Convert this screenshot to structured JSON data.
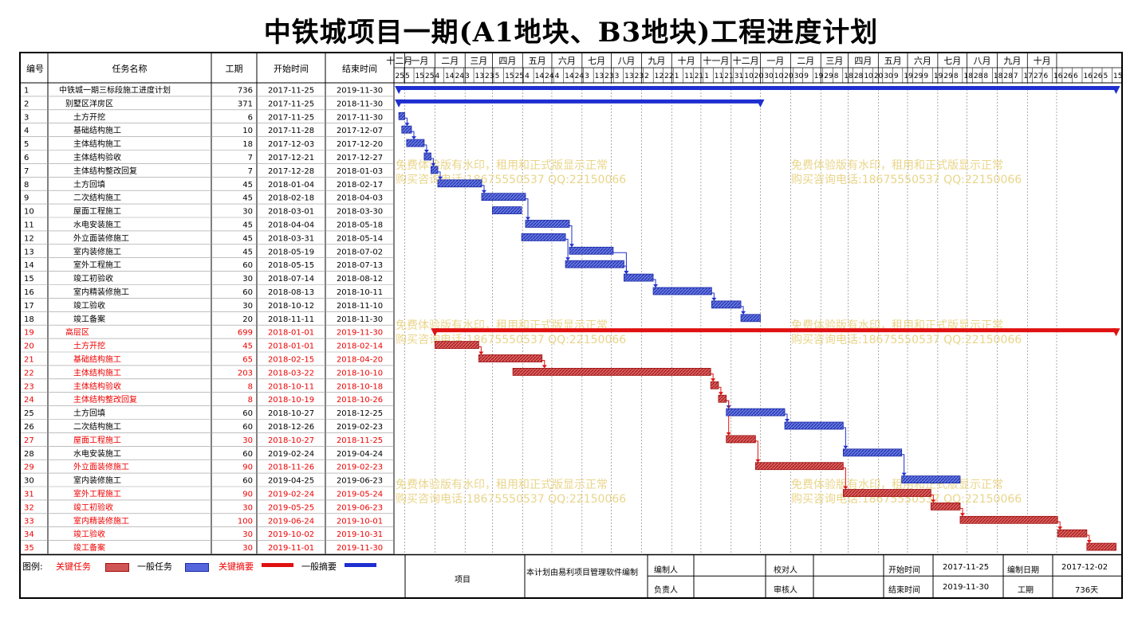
{
  "title": "中铁城项目一期(A1地块、B3地块)工程进度计划",
  "columns": {
    "id": "编号",
    "name": "任务名称",
    "duration": "工期",
    "start": "开始时间",
    "end": "结束时间"
  },
  "timeline": {
    "months": [
      "十二月",
      "一月",
      "二月",
      "三月",
      "四月",
      "五月",
      "六月",
      "七月",
      "八月",
      "九月",
      "十月",
      "十一月",
      "十二月",
      "一月",
      "二月",
      "三月",
      "四月",
      "五月",
      "六月",
      "七月",
      "八月",
      "九月",
      "十月"
    ],
    "days": [
      "25",
      "5",
      "15",
      "25",
      "4",
      "14",
      "24",
      "3",
      "13",
      "23",
      "5",
      "15",
      "25",
      "4",
      "14",
      "24",
      "4",
      "14",
      "24",
      "3",
      "13",
      "23",
      "3",
      "13",
      "23",
      "2",
      "12",
      "22",
      "1",
      "11",
      "21",
      "1",
      "11",
      "21",
      "31",
      "10",
      "20",
      "30",
      "10",
      "20",
      "30",
      "9",
      "19",
      "29",
      "8",
      "18",
      "28",
      "10",
      "20",
      "30",
      "9",
      "19",
      "29",
      "9",
      "19",
      "29",
      "8",
      "18",
      "28",
      "8",
      "18",
      "28",
      "7",
      "17",
      "27",
      "6",
      "16",
      "26",
      "6",
      "16",
      "26",
      "5",
      "15"
    ]
  },
  "tasks": [
    {
      "id": "1",
      "name": "中铁城一期三标段施工进度计划",
      "duration": "736",
      "start": "2017-11-25",
      "end": "2019-11-30",
      "type": "summary",
      "critical": false,
      "indent": 0
    },
    {
      "id": "2",
      "name": "别墅区洋房区",
      "duration": "371",
      "start": "2017-11-25",
      "end": "2018-11-30",
      "type": "summary",
      "critical": false,
      "indent": 1
    },
    {
      "id": "3",
      "name": "土方开挖",
      "duration": "6",
      "start": "2017-11-25",
      "end": "2017-11-30",
      "type": "task",
      "critical": false,
      "indent": 2
    },
    {
      "id": "4",
      "name": "基础结构施工",
      "duration": "10",
      "start": "2017-11-28",
      "end": "2017-12-07",
      "type": "task",
      "critical": false,
      "indent": 2
    },
    {
      "id": "5",
      "name": "主体结构施工",
      "duration": "18",
      "start": "2017-12-03",
      "end": "2017-12-20",
      "type": "task",
      "critical": false,
      "indent": 2
    },
    {
      "id": "6",
      "name": "主体结构验收",
      "duration": "7",
      "start": "2017-12-21",
      "end": "2017-12-27",
      "type": "task",
      "critical": false,
      "indent": 2
    },
    {
      "id": "7",
      "name": "主体结构整改回复",
      "duration": "7",
      "start": "2017-12-28",
      "end": "2018-01-03",
      "type": "task",
      "critical": false,
      "indent": 2
    },
    {
      "id": "8",
      "name": "土方回填",
      "duration": "45",
      "start": "2018-01-04",
      "end": "2018-02-17",
      "type": "task",
      "critical": false,
      "indent": 2
    },
    {
      "id": "9",
      "name": "二次结构施工",
      "duration": "45",
      "start": "2018-02-18",
      "end": "2018-04-03",
      "type": "task",
      "critical": false,
      "indent": 2
    },
    {
      "id": "10",
      "name": "屋面工程施工",
      "duration": "30",
      "start": "2018-03-01",
      "end": "2018-03-30",
      "type": "task",
      "critical": false,
      "indent": 2
    },
    {
      "id": "11",
      "name": "水电安装施工",
      "duration": "45",
      "start": "2018-04-04",
      "end": "2018-05-18",
      "type": "task",
      "critical": false,
      "indent": 2
    },
    {
      "id": "12",
      "name": "外立面装修施工",
      "duration": "45",
      "start": "2018-03-31",
      "end": "2018-05-14",
      "type": "task",
      "critical": false,
      "indent": 2
    },
    {
      "id": "13",
      "name": "室内装修施工",
      "duration": "45",
      "start": "2018-05-19",
      "end": "2018-07-02",
      "type": "task",
      "critical": false,
      "indent": 2
    },
    {
      "id": "14",
      "name": "室外工程施工",
      "duration": "60",
      "start": "2018-05-15",
      "end": "2018-07-13",
      "type": "task",
      "critical": false,
      "indent": 2
    },
    {
      "id": "15",
      "name": "竣工初验收",
      "duration": "30",
      "start": "2018-07-14",
      "end": "2018-08-12",
      "type": "task",
      "critical": false,
      "indent": 2
    },
    {
      "id": "16",
      "name": "室内精装修施工",
      "duration": "60",
      "start": "2018-08-13",
      "end": "2018-10-11",
      "type": "task",
      "critical": false,
      "indent": 2
    },
    {
      "id": "17",
      "name": "竣工验收",
      "duration": "30",
      "start": "2018-10-12",
      "end": "2018-11-10",
      "type": "task",
      "critical": false,
      "indent": 2
    },
    {
      "id": "18",
      "name": "竣工备案",
      "duration": "20",
      "start": "2018-11-11",
      "end": "2018-11-30",
      "type": "task",
      "critical": false,
      "indent": 2
    },
    {
      "id": "19",
      "name": "高层区",
      "duration": "699",
      "start": "2018-01-01",
      "end": "2019-11-30",
      "type": "summary",
      "critical": true,
      "indent": 1
    },
    {
      "id": "20",
      "name": "土方开挖",
      "duration": "45",
      "start": "2018-01-01",
      "end": "2018-02-14",
      "type": "task",
      "critical": true,
      "indent": 2
    },
    {
      "id": "21",
      "name": "基础结构施工",
      "duration": "65",
      "start": "2018-02-15",
      "end": "2018-04-20",
      "type": "task",
      "critical": true,
      "indent": 2
    },
    {
      "id": "22",
      "name": "主体结构施工",
      "duration": "203",
      "start": "2018-03-22",
      "end": "2018-10-10",
      "type": "task",
      "critical": true,
      "indent": 2
    },
    {
      "id": "23",
      "name": "主体结构验收",
      "duration": "8",
      "start": "2018-10-11",
      "end": "2018-10-18",
      "type": "task",
      "critical": true,
      "indent": 2
    },
    {
      "id": "24",
      "name": "主体结构整改回复",
      "duration": "8",
      "start": "2018-10-19",
      "end": "2018-10-26",
      "type": "task",
      "critical": true,
      "indent": 2
    },
    {
      "id": "25",
      "name": "土方回填",
      "duration": "60",
      "start": "2018-10-27",
      "end": "2018-12-25",
      "type": "task",
      "critical": false,
      "indent": 2
    },
    {
      "id": "26",
      "name": "二次结构施工",
      "duration": "60",
      "start": "2018-12-26",
      "end": "2019-02-23",
      "type": "task",
      "critical": false,
      "indent": 2
    },
    {
      "id": "27",
      "name": "屋面工程施工",
      "duration": "30",
      "start": "2018-10-27",
      "end": "2018-11-25",
      "type": "task",
      "critical": true,
      "indent": 2
    },
    {
      "id": "28",
      "name": "水电安装施工",
      "duration": "60",
      "start": "2019-02-24",
      "end": "2019-04-24",
      "type": "task",
      "critical": false,
      "indent": 2
    },
    {
      "id": "29",
      "name": "外立面装修施工",
      "duration": "90",
      "start": "2018-11-26",
      "end": "2019-02-23",
      "type": "task",
      "critical": true,
      "indent": 2
    },
    {
      "id": "30",
      "name": "室内装修施工",
      "duration": "60",
      "start": "2019-04-25",
      "end": "2019-06-23",
      "type": "task",
      "critical": false,
      "indent": 2
    },
    {
      "id": "31",
      "name": "室外工程施工",
      "duration": "90",
      "start": "2019-02-24",
      "end": "2019-05-24",
      "type": "task",
      "critical": true,
      "indent": 2
    },
    {
      "id": "32",
      "name": "竣工初验收",
      "duration": "30",
      "start": "2019-05-25",
      "end": "2019-06-23",
      "type": "task",
      "critical": true,
      "indent": 2
    },
    {
      "id": "33",
      "name": "室内精装修施工",
      "duration": "100",
      "start": "2019-06-24",
      "end": "2019-10-01",
      "type": "task",
      "critical": true,
      "indent": 2
    },
    {
      "id": "34",
      "name": "竣工验收",
      "duration": "30",
      "start": "2019-10-02",
      "end": "2019-10-31",
      "type": "task",
      "critical": true,
      "indent": 2
    },
    {
      "id": "35",
      "name": "竣工备案",
      "duration": "30",
      "start": "2019-11-01",
      "end": "2019-11-30",
      "type": "task",
      "critical": true,
      "indent": 2
    }
  ],
  "dependencies": [
    [
      3,
      4
    ],
    [
      4,
      5
    ],
    [
      5,
      6
    ],
    [
      6,
      7
    ],
    [
      7,
      8
    ],
    [
      8,
      9
    ],
    [
      9,
      11
    ],
    [
      11,
      13
    ],
    [
      12,
      14
    ],
    [
      13,
      15
    ],
    [
      14,
      15
    ],
    [
      15,
      16
    ],
    [
      16,
      17
    ],
    [
      17,
      18
    ],
    [
      20,
      21
    ],
    [
      21,
      22
    ],
    [
      22,
      23
    ],
    [
      23,
      24
    ],
    [
      24,
      25
    ],
    [
      24,
      27
    ],
    [
      25,
      26
    ],
    [
      26,
      28
    ],
    [
      27,
      29
    ],
    [
      28,
      30
    ],
    [
      29,
      31
    ],
    [
      31,
      32
    ],
    [
      32,
      33
    ],
    [
      33,
      34
    ],
    [
      34,
      35
    ]
  ],
  "watermark": {
    "line1": "免费体验版有水印，租用和正式版显示正常",
    "line2": "购买咨询电话:18675550537 QQ:22150066"
  },
  "legend": {
    "label": "图例:",
    "critical_task": "关键任务",
    "normal_task": "一般任务",
    "critical_summary": "关键摘要",
    "normal_summary": "一般摘要"
  },
  "footer": {
    "project_label": "项目",
    "note": "本计划由易利项目管理软件编制",
    "compiler_label": "编制人",
    "reviewer_label": "校对人",
    "start_label": "开始时间",
    "start_value": "2017-11-25",
    "compile_date_label": "编制日期",
    "compile_date_value": "2017-12-02",
    "manager_label": "负责人",
    "auditor_label": "审核人",
    "end_label": "结束时间",
    "end_value": "2019-11-30",
    "duration_label": "工期",
    "duration_value": "736天"
  },
  "colors": {
    "normal": "#1f2fd0",
    "normal_fill": "#5566dd",
    "critical": "#e01010",
    "critical_fill": "#d05555",
    "critical_text": "#ee0000"
  }
}
